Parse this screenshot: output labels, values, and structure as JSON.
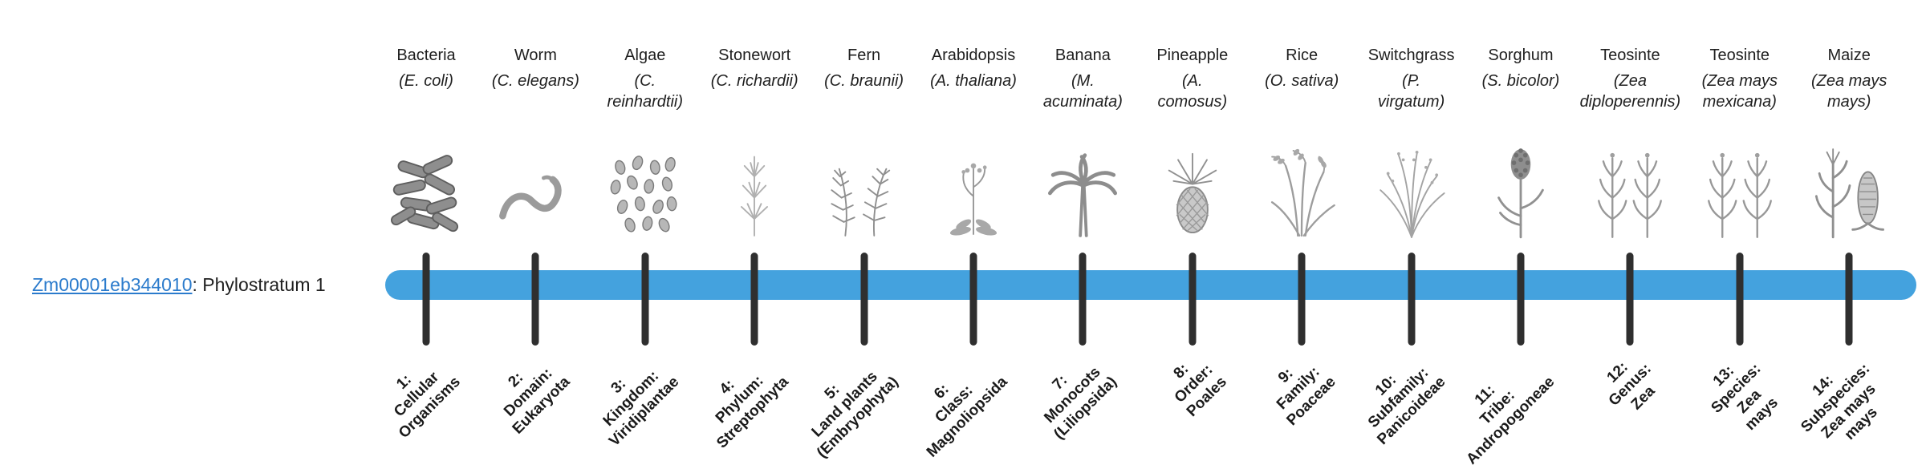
{
  "figure": {
    "gene_id": "Zm00001eb344010",
    "gene_suffix": ": Phylostratum 1"
  },
  "colors": {
    "bar": "#44a2de",
    "tick": "#2f2f2f",
    "link": "#2b7bcc",
    "text": "#1f1f1f",
    "icon": "#8f8f8f"
  },
  "strata": [
    {
      "number": 1,
      "common_name": "Bacteria",
      "scientific_name": "(E. coli)",
      "icon": "bacteria-icon",
      "stratum_label": "1:\nCellular\nOrganisms"
    },
    {
      "number": 2,
      "common_name": "Worm",
      "scientific_name": "(C. elegans)",
      "icon": "worm-icon",
      "stratum_label": "2:\nDomain:\nEukaryota"
    },
    {
      "number": 3,
      "common_name": "Algae",
      "scientific_name": "(C.\nreinhardtii)",
      "icon": "algae-icon",
      "stratum_label": "3:\nKingdom:\nViridiplantae"
    },
    {
      "number": 4,
      "common_name": "Stonewort",
      "scientific_name": "(C. richardii)",
      "icon": "stonewort-icon",
      "stratum_label": "4:\nPhylum:\nStreptophyta"
    },
    {
      "number": 5,
      "common_name": "Fern",
      "scientific_name": "(C. braunii)",
      "icon": "fern-icon",
      "stratum_label": "5:\nLand plants\n(Embryophyta)"
    },
    {
      "number": 6,
      "common_name": "Arabidopsis",
      "scientific_name": "(A. thaliana)",
      "icon": "arabidopsis-icon",
      "stratum_label": "6:\nClass:\nMagnoliopsida"
    },
    {
      "number": 7,
      "common_name": "Banana",
      "scientific_name": "(M.\nacuminata)",
      "icon": "banana-icon",
      "stratum_label": "7:\nMonocots\n(Liliopsida)"
    },
    {
      "number": 8,
      "common_name": "Pineapple",
      "scientific_name": "(A.\ncomosus)",
      "icon": "pineapple-icon",
      "stratum_label": "8:\nOrder:\nPoales"
    },
    {
      "number": 9,
      "common_name": "Rice",
      "scientific_name": "(O. sativa)",
      "icon": "rice-icon",
      "stratum_label": "9:\nFamily:\nPoaceae"
    },
    {
      "number": 10,
      "common_name": "Switchgrass",
      "scientific_name": "(P.\nvirgatum)",
      "icon": "switchgrass-icon",
      "stratum_label": "10:\nSubfamily:\nPanicoideae"
    },
    {
      "number": 11,
      "common_name": "Sorghum",
      "scientific_name": "(S. bicolor)",
      "icon": "sorghum-icon",
      "stratum_label": "11:\nTribe:\nAndropogoneae"
    },
    {
      "number": 12,
      "common_name": "Teosinte",
      "scientific_name": "(Zea\ndiploperennis)",
      "icon": "teosinte-icon",
      "stratum_label": "12:\nGenus:\nZea"
    },
    {
      "number": 13,
      "common_name": "Teosinte",
      "scientific_name": "(Zea mays\nmexicana)",
      "icon": "teosinte-icon",
      "stratum_label": "13:\nSpecies:\nZea\nmays"
    },
    {
      "number": 14,
      "common_name": "Maize",
      "scientific_name": "(Zea mays\nmays)",
      "icon": "maize-icon",
      "stratum_label": "14:\nSubspecies:\nZea mays\nmays"
    }
  ]
}
